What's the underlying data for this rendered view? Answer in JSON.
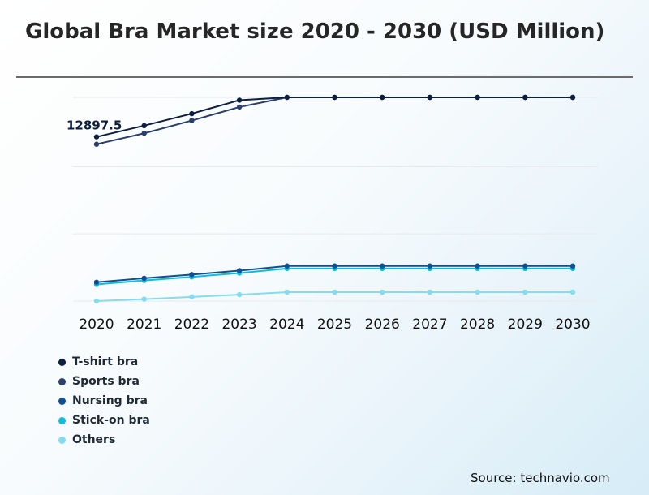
{
  "title": "Global Bra Market size 2020 - 2030 (USD Million)",
  "source": "Source: technavio.com",
  "colors": {
    "t_shirt": "#0d1f3f",
    "sports": "#2a3f6a",
    "nursing": "#0f4f94",
    "stick_on": "#11bcd6",
    "others": "#85dcee",
    "grid": "#e6e9ec",
    "rule": "#6b6b6b"
  },
  "chart_data": {
    "type": "line",
    "title": "Global Bra Market size 2020 - 2030 (USD Million)",
    "x": [
      "2020",
      "2021",
      "2022",
      "2023",
      "2024",
      "2025",
      "2026",
      "2027",
      "2028",
      "2029",
      "2030"
    ],
    "ylim": [
      0,
      16000
    ],
    "grid": true,
    "legend_position": "bottom-left",
    "annotation": {
      "label": "12897.5",
      "series": "T-shirt bra",
      "x": "2020"
    },
    "series": [
      {
        "name": "T-shirt bra",
        "color": "#0d1f3f",
        "values": [
          12897.5,
          13780,
          14720,
          15780,
          16000,
          16000,
          16000,
          16000,
          16000,
          16000,
          16000
        ]
      },
      {
        "name": "Sports bra",
        "color": "#2a3f6a",
        "values": [
          12320,
          13180,
          14180,
          15240,
          16000,
          16000,
          16000,
          16000,
          16000,
          16000,
          16000
        ]
      },
      {
        "name": "Nursing bra",
        "color": "#0f4f94",
        "values": [
          1480,
          1790,
          2080,
          2390,
          2760,
          2760,
          2760,
          2760,
          2760,
          2760,
          2760
        ]
      },
      {
        "name": "Stick-on bra",
        "color": "#11bcd6",
        "values": [
          1310,
          1620,
          1900,
          2200,
          2560,
          2560,
          2560,
          2560,
          2560,
          2560,
          2560
        ]
      },
      {
        "name": "Others",
        "color": "#85dcee",
        "values": [
          0,
          155,
          330,
          505,
          705,
          705,
          705,
          705,
          705,
          705,
          705
        ]
      }
    ]
  }
}
